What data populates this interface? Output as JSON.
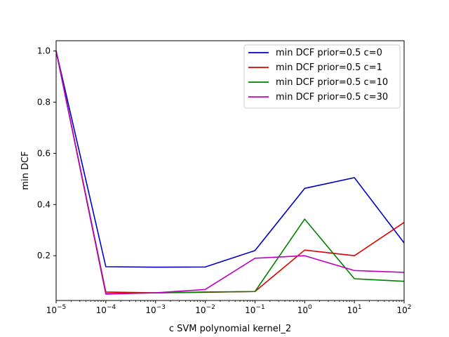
{
  "chart_data": {
    "type": "line",
    "xscale": "log",
    "x": [
      1e-05,
      0.0001,
      0.001,
      0.01,
      0.1,
      1,
      10,
      100
    ],
    "xlim": [
      1e-05,
      100
    ],
    "ylim": [
      0.025,
      1.04
    ],
    "xlabel": "c SVM polynomial kernel_2",
    "ylabel": "min DCF",
    "xticks": [
      {
        "value": 1e-05,
        "base": "10",
        "exp": "−5"
      },
      {
        "value": 0.0001,
        "base": "10",
        "exp": "−4"
      },
      {
        "value": 0.001,
        "base": "10",
        "exp": "−3"
      },
      {
        "value": 0.01,
        "base": "10",
        "exp": "−2"
      },
      {
        "value": 0.1,
        "base": "10",
        "exp": "−1"
      },
      {
        "value": 1,
        "base": "10",
        "exp": "0"
      },
      {
        "value": 10,
        "base": "10",
        "exp": "1"
      },
      {
        "value": 100,
        "base": "10",
        "exp": "2"
      }
    ],
    "yticks": [
      {
        "value": 0.2,
        "label": "0.2"
      },
      {
        "value": 0.4,
        "label": "0.4"
      },
      {
        "value": 0.6,
        "label": "0.6"
      },
      {
        "value": 0.8,
        "label": "0.8"
      },
      {
        "value": 1.0,
        "label": "1.0"
      }
    ],
    "grid": false,
    "legend_position": "upper right",
    "series": [
      {
        "name": "min DCF prior=0.5 c=0",
        "color": "#0000cc",
        "values": [
          1.0,
          0.157,
          0.155,
          0.156,
          0.22,
          0.463,
          0.505,
          0.25
        ]
      },
      {
        "name": "min DCF prior=0.5 c=1",
        "color": "#dd0000",
        "values": [
          1.0,
          0.058,
          0.055,
          0.057,
          0.06,
          0.222,
          0.2,
          0.33
        ]
      },
      {
        "name": "min DCF prior=0.5 c=10",
        "color": "#008000",
        "values": [
          1.0,
          0.052,
          0.055,
          0.058,
          0.06,
          0.343,
          0.11,
          0.1
        ]
      },
      {
        "name": "min DCF prior=0.5 c=30",
        "color": "#bf00bf",
        "values": [
          1.0,
          0.05,
          0.055,
          0.068,
          0.19,
          0.2,
          0.142,
          0.135
        ]
      }
    ]
  }
}
